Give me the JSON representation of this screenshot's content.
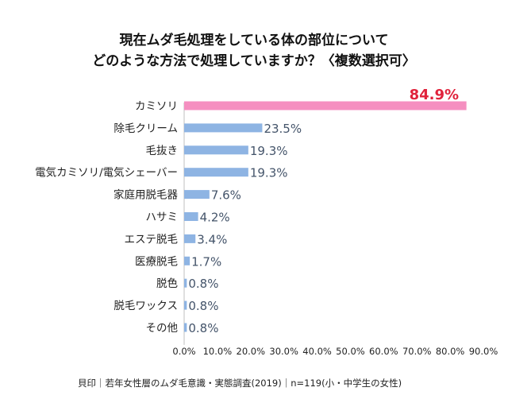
{
  "chart_data": {
    "type": "bar",
    "orientation": "horizontal",
    "title_lines": [
      "現在ムダ毛処理をしている体の部位について",
      "どのような方法で処理していますか？〈複数選択可〉"
    ],
    "categories": [
      "カミソリ",
      "除毛クリーム",
      "毛抜き",
      "電気カミソリ/電気シェーバー",
      "家庭用脱毛器",
      "ハサミ",
      "エステ脱毛",
      "医療脱毛",
      "脱色",
      "脱毛ワックス",
      "その他"
    ],
    "values": [
      84.9,
      23.5,
      19.3,
      19.3,
      7.6,
      4.2,
      3.4,
      1.7,
      0.8,
      0.8,
      0.8
    ],
    "value_labels": [
      "84.9%",
      "23.5%",
      "19.3%",
      "19.3%",
      "7.6%",
      "4.2%",
      "3.4%",
      "1.7%",
      "0.8%",
      "0.8%",
      "0.8%"
    ],
    "xlim": [
      0,
      90
    ],
    "x_ticks": [
      0,
      10,
      20,
      30,
      40,
      50,
      60,
      70,
      80,
      90
    ],
    "x_tick_labels": [
      "0.0%",
      "10.0%",
      "20.0%",
      "30.0%",
      "40.0%",
      "50.0%",
      "60.0%",
      "70.0%",
      "80.0%",
      "90.0%"
    ],
    "grid": false,
    "colors": {
      "highlight_bar": "#f58fc0",
      "bar": "#8eb4e3",
      "highlight_label": "#e0233c",
      "label": "#44546a"
    }
  },
  "footer": "貝印｜若年女性層のムダ毛意識・実態調査(2019)｜n=119(小・中学生の女性)"
}
